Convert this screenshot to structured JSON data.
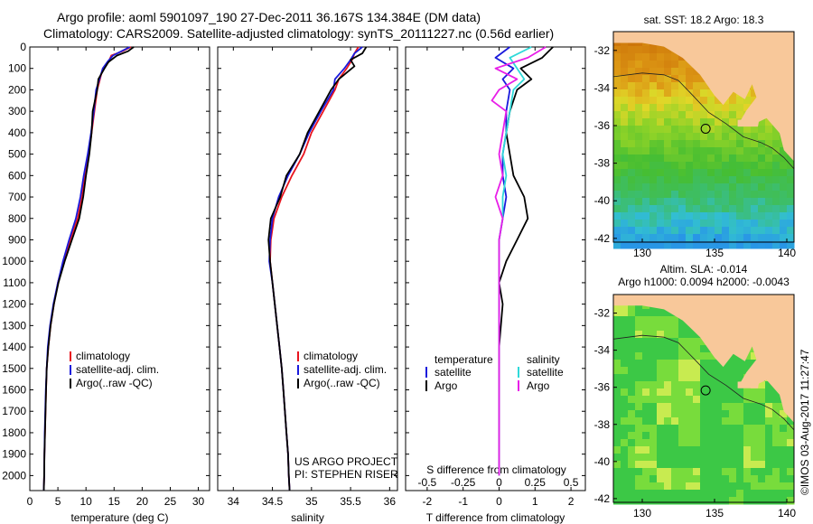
{
  "header": {
    "line1": "Argo profile: aoml 5901097_190 27-Dec-2011 36.167S 134.384E (DM data)",
    "line2": "Climatology: CARS2009. Satellite-adjusted climatology: synTS_20111227.nc (0.56d earlier)"
  },
  "colors": {
    "climatology": "#e8141e",
    "satellite": "#1a1adc",
    "argo": "#000000",
    "temp_satellite": "#1a1adc",
    "sal_satellite": "#2fd9d9",
    "sal_argo": "#e81ee8",
    "land": "#f8c89a"
  },
  "chart_data": [
    {
      "type": "line",
      "xlabel": "temperature (deg C)",
      "ylabel": "",
      "xlim": [
        0,
        32
      ],
      "ylim": [
        2070,
        0
      ],
      "xticks": [
        "0",
        "5",
        "10",
        "15",
        "20",
        "25",
        "30"
      ],
      "yticks": [
        "0",
        "100",
        "200",
        "300",
        "400",
        "500",
        "600",
        "700",
        "800",
        "900",
        "1000",
        "1100",
        "1200",
        "1300",
        "1400",
        "1500",
        "1600",
        "1700",
        "1800",
        "1900",
        "2000"
      ],
      "legend": [
        "climatology",
        "satellite-adj. clim.",
        "Argo(..raw -QC)"
      ],
      "legend_position": "lower-middle",
      "series": [
        {
          "name": "climatology",
          "values": [
            [
              18,
              0
            ],
            [
              16.5,
              20
            ],
            [
              14.5,
              40
            ],
            [
              14,
              70
            ],
            [
              13,
              100
            ],
            [
              12.5,
              150
            ],
            [
              12,
              200
            ],
            [
              11.5,
              300
            ],
            [
              11,
              400
            ],
            [
              10.5,
              500
            ],
            [
              9.8,
              600
            ],
            [
              9.3,
              700
            ],
            [
              8.5,
              800
            ],
            [
              7.2,
              900
            ],
            [
              6,
              1000
            ],
            [
              5,
              1100
            ],
            [
              4.3,
              1200
            ],
            [
              3.7,
              1300
            ],
            [
              3.3,
              1400
            ],
            [
              3,
              1500
            ],
            [
              2.9,
              1600
            ],
            [
              2.8,
              1700
            ],
            [
              2.7,
              1800
            ],
            [
              2.6,
              1900
            ],
            [
              2.55,
              2000
            ],
            [
              2.5,
              2070
            ]
          ]
        },
        {
          "name": "satellite-adj. clim.",
          "values": [
            [
              17.8,
              0
            ],
            [
              16.3,
              20
            ],
            [
              14.8,
              40
            ],
            [
              13.8,
              70
            ],
            [
              13,
              100
            ],
            [
              12.4,
              150
            ],
            [
              11.8,
              200
            ],
            [
              11.4,
              300
            ],
            [
              10.9,
              400
            ],
            [
              10.3,
              500
            ],
            [
              9.6,
              600
            ],
            [
              9,
              700
            ],
            [
              8.2,
              800
            ],
            [
              7,
              900
            ],
            [
              5.9,
              1000
            ],
            [
              5,
              1100
            ],
            [
              4.2,
              1200
            ],
            [
              3.6,
              1300
            ],
            [
              3.2,
              1400
            ],
            [
              3,
              1500
            ],
            [
              2.85,
              1600
            ],
            [
              2.75,
              1700
            ],
            [
              2.65,
              1800
            ],
            [
              2.6,
              1900
            ],
            [
              2.55,
              2000
            ],
            [
              2.5,
              2070
            ]
          ]
        },
        {
          "name": "Argo(..raw -QC)",
          "values": [
            [
              18.5,
              0
            ],
            [
              17.5,
              20
            ],
            [
              15.5,
              40
            ],
            [
              14,
              70
            ],
            [
              13.3,
              100
            ],
            [
              12.2,
              150
            ],
            [
              12,
              200
            ],
            [
              11.2,
              300
            ],
            [
              11,
              400
            ],
            [
              10.6,
              500
            ],
            [
              10,
              600
            ],
            [
              9.5,
              700
            ],
            [
              8.8,
              800
            ],
            [
              7.5,
              900
            ],
            [
              6.2,
              1000
            ],
            [
              5.1,
              1100
            ],
            [
              4.3,
              1200
            ],
            [
              3.7,
              1300
            ],
            [
              3.3,
              1400
            ],
            [
              3,
              1500
            ],
            [
              2.9,
              1600
            ],
            [
              2.8,
              1700
            ],
            [
              2.7,
              1800
            ],
            [
              2.6,
              1900
            ],
            [
              2.55,
              2000
            ],
            [
              2.5,
              2070
            ]
          ]
        }
      ]
    },
    {
      "type": "line",
      "xlabel": "salinity",
      "ylabel": "",
      "xlim": [
        33.8,
        36.1
      ],
      "ylim": [
        2070,
        0
      ],
      "xticks": [
        "34",
        "34.5",
        "35",
        "35.5",
        "36"
      ],
      "legend": [
        "climatology",
        "satellite-adj. clim.",
        "Argo(..raw -QC)"
      ],
      "legend_position": "lower-right",
      "annotations": [
        "US ARGO PROJECT",
        "PI: STEPHEN RISER"
      ],
      "series": [
        {
          "name": "climatology",
          "values": [
            [
              35.6,
              0
            ],
            [
              35.55,
              30
            ],
            [
              35.52,
              60
            ],
            [
              35.45,
              100
            ],
            [
              35.35,
              150
            ],
            [
              35.3,
              200
            ],
            [
              35.15,
              300
            ],
            [
              35,
              400
            ],
            [
              34.9,
              500
            ],
            [
              34.75,
              600
            ],
            [
              34.62,
              700
            ],
            [
              34.52,
              800
            ],
            [
              34.48,
              900
            ],
            [
              34.47,
              1000
            ],
            [
              34.5,
              1100
            ],
            [
              34.53,
              1200
            ],
            [
              34.56,
              1300
            ],
            [
              34.59,
              1400
            ],
            [
              34.62,
              1500
            ],
            [
              34.64,
              1600
            ],
            [
              34.66,
              1700
            ],
            [
              34.68,
              1800
            ],
            [
              34.7,
              1900
            ],
            [
              34.71,
              2000
            ],
            [
              34.72,
              2070
            ]
          ]
        },
        {
          "name": "satellite-adj. clim.",
          "values": [
            [
              35.65,
              0
            ],
            [
              35.55,
              30
            ],
            [
              35.5,
              60
            ],
            [
              35.42,
              100
            ],
            [
              35.3,
              150
            ],
            [
              35.28,
              200
            ],
            [
              35.12,
              300
            ],
            [
              34.97,
              400
            ],
            [
              34.85,
              500
            ],
            [
              34.7,
              600
            ],
            [
              34.58,
              700
            ],
            [
              34.5,
              800
            ],
            [
              34.47,
              900
            ],
            [
              34.46,
              1000
            ],
            [
              34.5,
              1100
            ],
            [
              34.53,
              1200
            ],
            [
              34.56,
              1300
            ],
            [
              34.59,
              1400
            ],
            [
              34.62,
              1500
            ],
            [
              34.64,
              1600
            ],
            [
              34.66,
              1700
            ],
            [
              34.68,
              1800
            ],
            [
              34.7,
              1900
            ],
            [
              34.71,
              2000
            ],
            [
              34.72,
              2070
            ]
          ]
        },
        {
          "name": "Argo(..raw -QC)",
          "values": [
            [
              35.7,
              0
            ],
            [
              35.65,
              30
            ],
            [
              35.5,
              60
            ],
            [
              35.55,
              90
            ],
            [
              35.35,
              150
            ],
            [
              35.25,
              200
            ],
            [
              35.1,
              300
            ],
            [
              34.95,
              400
            ],
            [
              34.85,
              500
            ],
            [
              34.68,
              600
            ],
            [
              34.6,
              700
            ],
            [
              34.48,
              800
            ],
            [
              34.45,
              900
            ],
            [
              34.47,
              1000
            ],
            [
              34.5,
              1100
            ],
            [
              34.53,
              1200
            ],
            [
              34.56,
              1300
            ],
            [
              34.59,
              1400
            ],
            [
              34.62,
              1500
            ],
            [
              34.64,
              1600
            ],
            [
              34.66,
              1700
            ],
            [
              34.68,
              1800
            ],
            [
              34.7,
              1900
            ],
            [
              34.71,
              2000
            ],
            [
              34.72,
              2070
            ]
          ]
        }
      ]
    },
    {
      "type": "line",
      "xlabel": "T difference from climatology",
      "x2label": "S difference from climatology",
      "xlim": [
        -2.6,
        2.4
      ],
      "ylim": [
        2070,
        0
      ],
      "xticks": [
        "-2",
        "-1",
        "0",
        "1",
        "2"
      ],
      "x2ticks": [
        "-0.5",
        "-0.25",
        "0",
        "0.25",
        "0.5"
      ],
      "legend_temperature": {
        "title": "temperature",
        "items": [
          "satellite",
          "Argo"
        ]
      },
      "legend_salinity": {
        "title": "salinity",
        "items": [
          "satellite",
          "Argo"
        ]
      },
      "series": [
        {
          "name": "satellite",
          "group": "temperature",
          "values": [
            [
              0.3,
              0
            ],
            [
              -0.1,
              50
            ],
            [
              0.4,
              100
            ],
            [
              0.1,
              150
            ],
            [
              0.3,
              200
            ],
            [
              0.2,
              300
            ],
            [
              0.2,
              400
            ],
            [
              0.1,
              500
            ],
            [
              0.1,
              600
            ],
            [
              0.2,
              700
            ],
            [
              0.1,
              800
            ],
            [
              0,
              900
            ],
            [
              0,
              1000
            ],
            [
              0,
              1200
            ],
            [
              0,
              1400
            ],
            [
              0,
              1600
            ],
            [
              0,
              1800
            ],
            [
              0,
              2000
            ]
          ]
        },
        {
          "name": "Argo",
          "group": "temperature",
          "values": [
            [
              1.5,
              0
            ],
            [
              1.2,
              50
            ],
            [
              0.6,
              100
            ],
            [
              0.9,
              150
            ],
            [
              0.5,
              200
            ],
            [
              0.3,
              300
            ],
            [
              0.2,
              400
            ],
            [
              0.3,
              500
            ],
            [
              0.4,
              600
            ],
            [
              0.7,
              700
            ],
            [
              0.8,
              800
            ],
            [
              0.5,
              900
            ],
            [
              0.2,
              1000
            ],
            [
              0,
              1100
            ],
            [
              0.1,
              1200
            ],
            [
              0.05,
              1300
            ],
            [
              0,
              1400
            ],
            [
              0,
              1600
            ],
            [
              0,
              1800
            ],
            [
              0,
              2000
            ]
          ]
        },
        {
          "name": "satellite",
          "group": "salinity",
          "values": [
            [
              0.9,
              0
            ],
            [
              0.3,
              50
            ],
            [
              0.5,
              100
            ],
            [
              0.7,
              150
            ],
            [
              0.4,
              200
            ],
            [
              0.3,
              300
            ],
            [
              0.2,
              400
            ],
            [
              0.1,
              500
            ],
            [
              0.2,
              600
            ],
            [
              0.1,
              700
            ],
            [
              0.1,
              800
            ],
            [
              0,
              900
            ],
            [
              0,
              1000
            ],
            [
              0,
              1200
            ],
            [
              0,
              1400
            ],
            [
              0,
              1600
            ],
            [
              0,
              1800
            ],
            [
              0,
              2000
            ]
          ]
        },
        {
          "name": "Argo",
          "group": "salinity",
          "values": [
            [
              1.3,
              0
            ],
            [
              0.8,
              50
            ],
            [
              -0.1,
              100
            ],
            [
              0.5,
              150
            ],
            [
              0,
              200
            ],
            [
              -0.2,
              250
            ],
            [
              0.2,
              300
            ],
            [
              0.1,
              400
            ],
            [
              0,
              500
            ],
            [
              0.1,
              600
            ],
            [
              -0.1,
              700
            ],
            [
              0.1,
              800
            ],
            [
              0,
              900
            ],
            [
              0,
              1000
            ],
            [
              0,
              1200
            ],
            [
              0,
              1400
            ],
            [
              0,
              1600
            ],
            [
              0,
              1800
            ],
            [
              0,
              2000
            ]
          ]
        }
      ]
    },
    {
      "type": "heatmap",
      "title": "sat. SST: 18.2   Argo: 18.3",
      "xlim": [
        128,
        140.5
      ],
      "ylim": [
        -42.2,
        -31
      ],
      "xticks": [
        "130",
        "135",
        "140"
      ],
      "yticks": [
        "-32",
        "-34",
        "-36",
        "-38",
        "-40",
        "-42"
      ],
      "marker": {
        "lon": 134.384,
        "lat": -36.167
      }
    },
    {
      "type": "heatmap",
      "title": "Altim. SLA: -0.014",
      "subtitle": "Argo h1000: 0.0094  h2000: -0.0043",
      "xlim": [
        128,
        140.5
      ],
      "ylim": [
        -42.2,
        -31
      ],
      "xticks": [
        "130",
        "135",
        "140"
      ],
      "yticks": [
        "-32",
        "-34",
        "-36",
        "-38",
        "-40",
        "-42"
      ],
      "marker": {
        "lon": 134.384,
        "lat": -36.167
      }
    }
  ],
  "footer": {
    "stamp": "©IMOS 03-Aug-2017 11:27:47"
  }
}
